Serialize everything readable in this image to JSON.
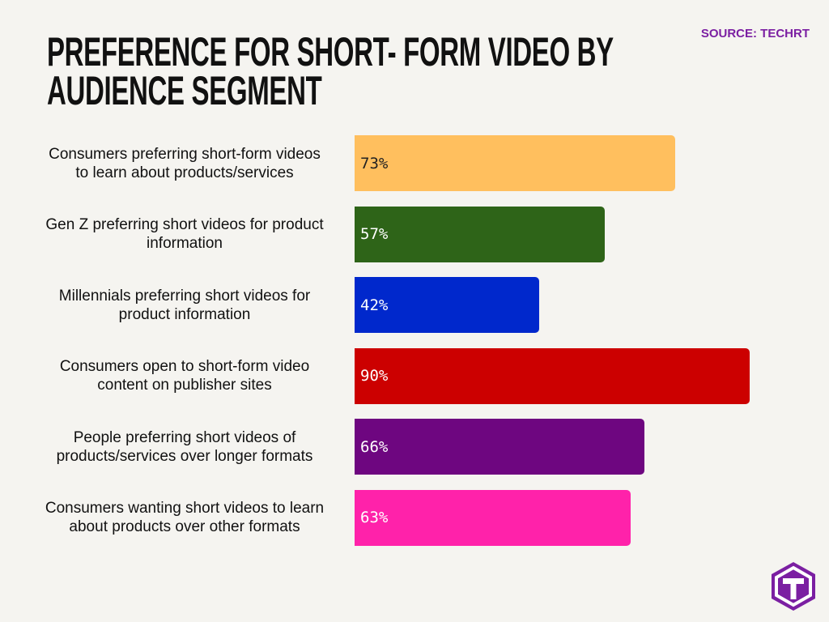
{
  "chart_data": {
    "type": "bar",
    "orientation": "horizontal",
    "title": "PREFERENCE FOR SHORT- FORM VIDEO BY\nAUDIENCE SEGMENT",
    "source": "SOURCE: TECHRT",
    "categories": [
      "Consumers preferring short-form videos\nto learn about products/services",
      "Gen Z preferring short videos for product\ninformation",
      "Millennials preferring short videos for\nproduct information",
      "Consumers open to short-form video\ncontent on publisher sites",
      "People preferring short videos of\nproducts/services over longer formats",
      "Consumers wanting short videos to learn\nabout products over other formats"
    ],
    "values": [
      73,
      57,
      42,
      90,
      66,
      63
    ],
    "value_labels": [
      "73%",
      "57%",
      "42%",
      "90%",
      "66%",
      "63%"
    ],
    "colors": [
      "#ffbf5e",
      "#2e6418",
      "#0028cc",
      "#cc0000",
      "#6e0680",
      "#ff22aa"
    ]
  }
}
